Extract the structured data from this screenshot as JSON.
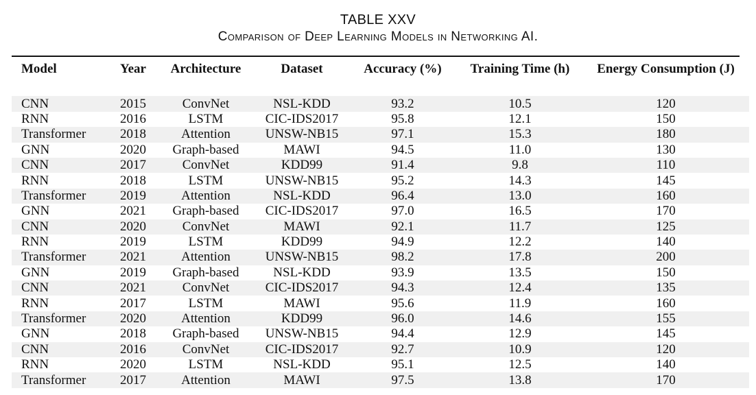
{
  "caption": {
    "number": "TABLE XXV",
    "title": "Comparison of Deep Learning Models in Networking AI."
  },
  "table": {
    "headers": [
      "Model",
      "Year",
      "Architecture",
      "Dataset",
      "Accuracy (%)",
      "Training Time (h)",
      "Energy Consumption (J)"
    ],
    "rows": [
      [
        "CNN",
        "2015",
        "ConvNet",
        "NSL-KDD",
        "93.2",
        "10.5",
        "120"
      ],
      [
        "RNN",
        "2016",
        "LSTM",
        "CIC-IDS2017",
        "95.8",
        "12.1",
        "150"
      ],
      [
        "Transformer",
        "2018",
        "Attention",
        "UNSW-NB15",
        "97.1",
        "15.3",
        "180"
      ],
      [
        "GNN",
        "2020",
        "Graph-based",
        "MAWI",
        "94.5",
        "11.0",
        "130"
      ],
      [
        "CNN",
        "2017",
        "ConvNet",
        "KDD99",
        "91.4",
        "9.8",
        "110"
      ],
      [
        "RNN",
        "2018",
        "LSTM",
        "UNSW-NB15",
        "95.2",
        "14.3",
        "145"
      ],
      [
        "Transformer",
        "2019",
        "Attention",
        "NSL-KDD",
        "96.4",
        "13.0",
        "160"
      ],
      [
        "GNN",
        "2021",
        "Graph-based",
        "CIC-IDS2017",
        "97.0",
        "16.5",
        "170"
      ],
      [
        "CNN",
        "2020",
        "ConvNet",
        "MAWI",
        "92.1",
        "11.7",
        "125"
      ],
      [
        "RNN",
        "2019",
        "LSTM",
        "KDD99",
        "94.9",
        "12.2",
        "140"
      ],
      [
        "Transformer",
        "2021",
        "Attention",
        "UNSW-NB15",
        "98.2",
        "17.8",
        "200"
      ],
      [
        "GNN",
        "2019",
        "Graph-based",
        "NSL-KDD",
        "93.9",
        "13.5",
        "150"
      ],
      [
        "CNN",
        "2021",
        "ConvNet",
        "CIC-IDS2017",
        "94.3",
        "12.4",
        "135"
      ],
      [
        "RNN",
        "2017",
        "LSTM",
        "MAWI",
        "95.6",
        "11.9",
        "160"
      ],
      [
        "Transformer",
        "2020",
        "Attention",
        "KDD99",
        "96.0",
        "14.6",
        "155"
      ],
      [
        "GNN",
        "2018",
        "Graph-based",
        "UNSW-NB15",
        "94.4",
        "12.9",
        "145"
      ],
      [
        "CNN",
        "2016",
        "ConvNet",
        "CIC-IDS2017",
        "92.7",
        "10.9",
        "120"
      ],
      [
        "RNN",
        "2020",
        "LSTM",
        "NSL-KDD",
        "95.1",
        "12.5",
        "140"
      ],
      [
        "Transformer",
        "2017",
        "Attention",
        "MAWI",
        "97.5",
        "13.8",
        "170"
      ]
    ],
    "stripe_color": "#f0f0f0",
    "rule_color": "#111111"
  }
}
